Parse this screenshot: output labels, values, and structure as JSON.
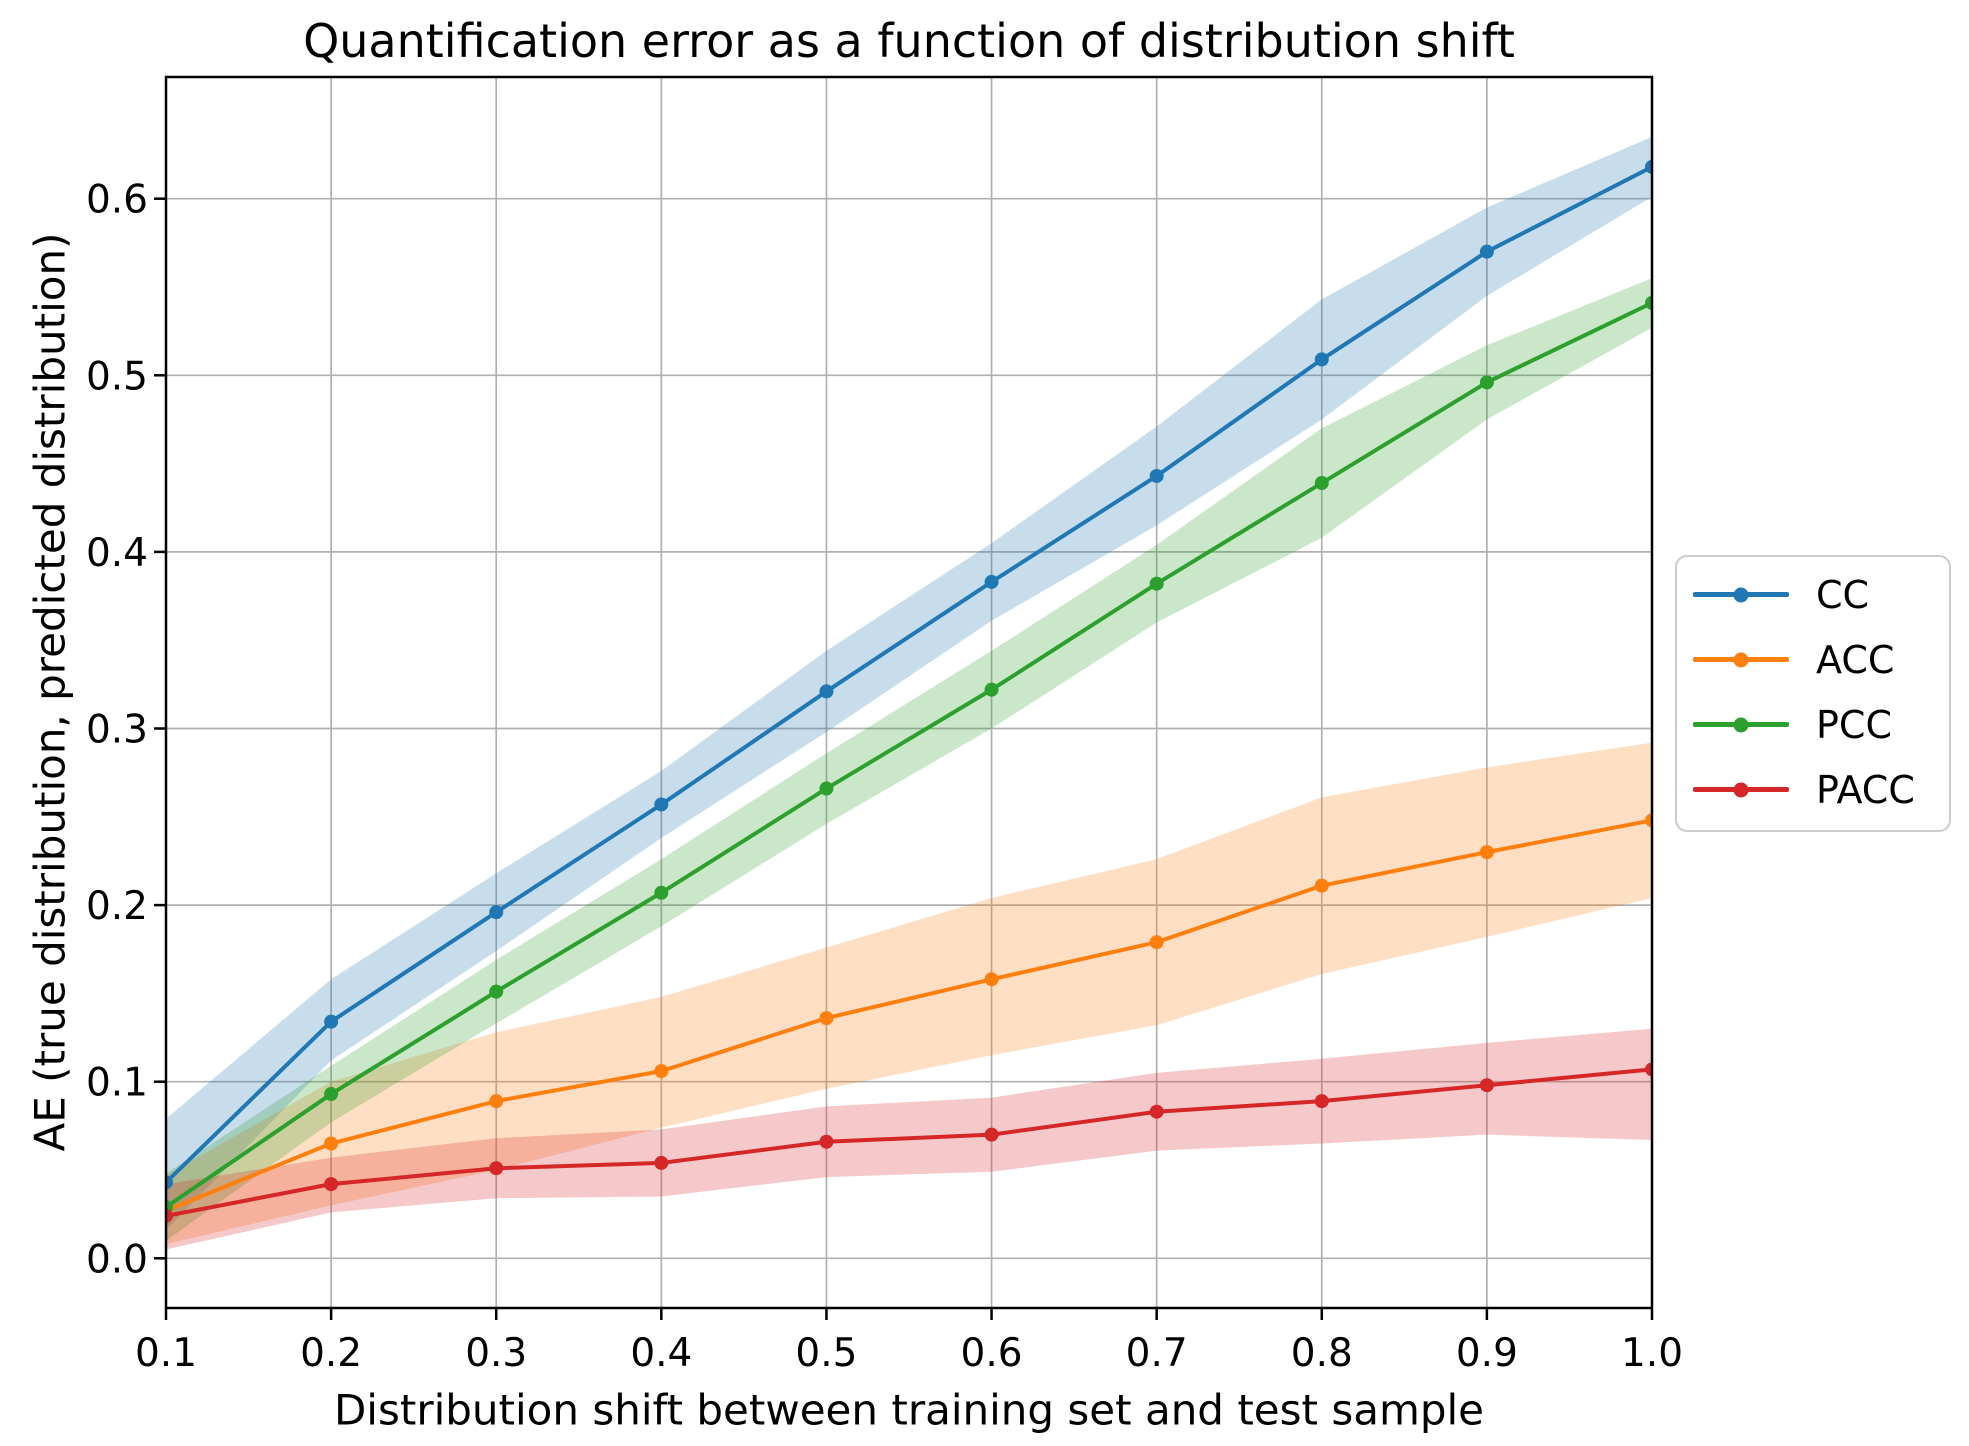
{
  "chart_data": {
    "type": "line",
    "title": "Quantification error as a function of distribution shift",
    "xlabel": "Distribution shift between training set and test sample",
    "ylabel": "AE (true distribution, predicted distribution)",
    "x": [
      0.1,
      0.2,
      0.3,
      0.4,
      0.5,
      0.6,
      0.7,
      0.8,
      0.9,
      1.0
    ],
    "x_tick_labels": [
      "0.1",
      "0.2",
      "0.3",
      "0.4",
      "0.5",
      "0.6",
      "0.7",
      "0.8",
      "0.9",
      "1.0"
    ],
    "y_ticks": [
      0.0,
      0.1,
      0.2,
      0.3,
      0.4,
      0.5,
      0.6
    ],
    "y_tick_labels": [
      "0.0",
      "0.1",
      "0.2",
      "0.3",
      "0.4",
      "0.5",
      "0.6"
    ],
    "xlim": [
      0.1,
      1.0
    ],
    "ylim": [
      -0.028,
      0.669
    ],
    "grid": true,
    "grid_color": "#b0b0b0",
    "axis_color": "#000000",
    "band_alpha": 0.25,
    "marker": "circle",
    "legend_position": "outside-center-right",
    "series": [
      {
        "name": "CC",
        "color": "#1f77b4",
        "values": [
          0.043,
          0.134,
          0.196,
          0.257,
          0.321,
          0.383,
          0.443,
          0.509,
          0.57,
          0.618
        ],
        "band_upper": [
          0.079,
          0.158,
          0.218,
          0.276,
          0.344,
          0.405,
          0.471,
          0.543,
          0.595,
          0.635
        ],
        "band_lower": [
          0.016,
          0.112,
          0.174,
          0.238,
          0.298,
          0.361,
          0.415,
          0.475,
          0.545,
          0.601
        ]
      },
      {
        "name": "ACC",
        "color": "#ff7f0e",
        "values": [
          0.027,
          0.065,
          0.089,
          0.106,
          0.136,
          0.158,
          0.179,
          0.211,
          0.23,
          0.248
        ],
        "band_upper": [
          0.047,
          0.1,
          0.128,
          0.148,
          0.176,
          0.204,
          0.226,
          0.261,
          0.278,
          0.292
        ],
        "band_lower": [
          0.008,
          0.03,
          0.05,
          0.074,
          0.096,
          0.115,
          0.132,
          0.161,
          0.182,
          0.204
        ]
      },
      {
        "name": "PCC",
        "color": "#2ca02c",
        "values": [
          0.029,
          0.093,
          0.151,
          0.207,
          0.266,
          0.322,
          0.382,
          0.439,
          0.496,
          0.541
        ],
        "band_upper": [
          0.048,
          0.109,
          0.169,
          0.226,
          0.286,
          0.344,
          0.404,
          0.47,
          0.517,
          0.555
        ],
        "band_lower": [
          0.01,
          0.077,
          0.133,
          0.188,
          0.246,
          0.3,
          0.36,
          0.408,
          0.475,
          0.527
        ]
      },
      {
        "name": "PACC",
        "color": "#d62728",
        "values": [
          0.024,
          0.042,
          0.051,
          0.054,
          0.066,
          0.07,
          0.083,
          0.089,
          0.098,
          0.107
        ],
        "band_upper": [
          0.042,
          0.057,
          0.068,
          0.073,
          0.086,
          0.091,
          0.105,
          0.113,
          0.122,
          0.13
        ],
        "band_lower": [
          0.005,
          0.026,
          0.034,
          0.035,
          0.046,
          0.049,
          0.061,
          0.065,
          0.07,
          0.067
        ]
      }
    ]
  }
}
